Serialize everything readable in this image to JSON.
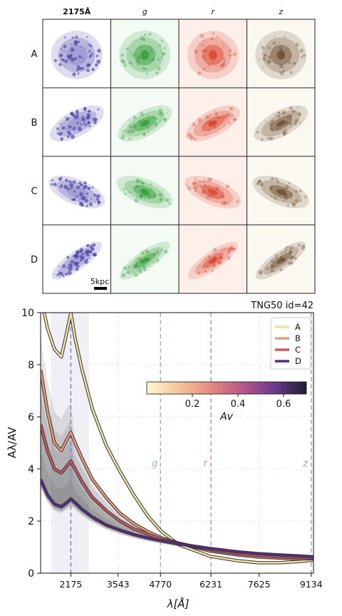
{
  "panel_grid": {
    "columns": [
      {
        "label": "2175Å",
        "color": "#4a44a8",
        "bg": "#ffffff"
      },
      {
        "label": "g",
        "color": "#2e9b35",
        "bg": "#f4faf4"
      },
      {
        "label": "r",
        "color": "#d8402a",
        "bg": "#fdf0ea"
      },
      {
        "label": "z",
        "color": "#6b4a2c",
        "bg": "#fbf7f1"
      }
    ],
    "rows": [
      {
        "label": "A",
        "shape": "disk"
      },
      {
        "label": "B",
        "shape": "tilted"
      },
      {
        "label": "C",
        "shape": "tilted"
      },
      {
        "label": "D",
        "shape": "elongated"
      }
    ],
    "scalebar_label": "5kpc"
  },
  "chart_data": {
    "type": "line",
    "title": "TNG50 id=42",
    "xlabel": "λ[Å]",
    "ylabel": "Aλ/AV",
    "xlim": [
      1300,
      9200
    ],
    "ylim": [
      0,
      10
    ],
    "xticks": [
      2175,
      3543,
      4770,
      6231,
      7625,
      9134
    ],
    "yticks": [
      0,
      2,
      4,
      6,
      8,
      10
    ],
    "bands": [
      {
        "name": "g",
        "x": 4770,
        "color": "#9bbf98"
      },
      {
        "name": "r",
        "x": 6231,
        "color": "#d79696"
      },
      {
        "name": "z",
        "x": 9134,
        "color": "#b8a0a0"
      }
    ],
    "bump_line": {
      "x": 2175,
      "color": "#7a86e6"
    },
    "bump_band": [
      1600,
      2700
    ],
    "series": [
      {
        "name": "A",
        "color": "#f0e2a8",
        "x": [
          1300,
          1500,
          1700,
          1900,
          2050,
          2175,
          2300,
          2500,
          2800,
          3200,
          3600,
          4000,
          4400,
          4800,
          5300,
          6200,
          7000,
          7600,
          8200,
          8800,
          9200
        ],
        "y": [
          10.6,
          9.4,
          8.6,
          8.3,
          9.2,
          10.0,
          9.0,
          7.8,
          6.3,
          4.9,
          3.9,
          3.0,
          2.2,
          1.6,
          1.1,
          0.65,
          0.48,
          0.4,
          0.4,
          0.45,
          0.5
        ]
      },
      {
        "name": "B",
        "color": "#ea9d7a",
        "x": [
          1300,
          1500,
          1700,
          1900,
          2050,
          2175,
          2300,
          2500,
          2800,
          3200,
          3600,
          4000,
          4400,
          4800,
          5300,
          6200,
          7000,
          7600,
          8200,
          8800,
          9200
        ],
        "y": [
          7.8,
          6.2,
          5.0,
          4.7,
          5.1,
          5.4,
          5.0,
          4.4,
          3.6,
          2.9,
          2.3,
          1.9,
          1.6,
          1.35,
          1.15,
          0.85,
          0.7,
          0.62,
          0.58,
          0.55,
          0.55
        ]
      },
      {
        "name": "C",
        "color": "#c65a66",
        "x": [
          1300,
          1500,
          1700,
          1900,
          2050,
          2175,
          2300,
          2500,
          2800,
          3200,
          3600,
          4000,
          4400,
          4800,
          5300,
          6200,
          7000,
          7600,
          8200,
          8800,
          9200
        ],
        "y": [
          5.7,
          4.7,
          4.0,
          3.85,
          4.1,
          4.3,
          4.0,
          3.5,
          2.9,
          2.4,
          2.0,
          1.7,
          1.5,
          1.3,
          1.15,
          0.9,
          0.75,
          0.68,
          0.63,
          0.6,
          0.58
        ]
      },
      {
        "name": "D",
        "color": "#5a2a85",
        "x": [
          1300,
          1500,
          1700,
          1900,
          2050,
          2175,
          2300,
          2500,
          2800,
          3200,
          3600,
          4000,
          4400,
          4800,
          5300,
          6200,
          7000,
          7600,
          8200,
          8800,
          9200
        ],
        "y": [
          3.6,
          3.0,
          2.65,
          2.55,
          2.7,
          2.85,
          2.7,
          2.45,
          2.15,
          1.85,
          1.65,
          1.48,
          1.35,
          1.24,
          1.12,
          0.95,
          0.82,
          0.75,
          0.7,
          0.66,
          0.63
        ]
      }
    ],
    "legend_position": "upper-right",
    "colorbar": {
      "label": "Av",
      "ticks": [
        0.2,
        0.4,
        0.6
      ],
      "range": [
        0.0,
        0.7
      ]
    },
    "grid": true
  }
}
